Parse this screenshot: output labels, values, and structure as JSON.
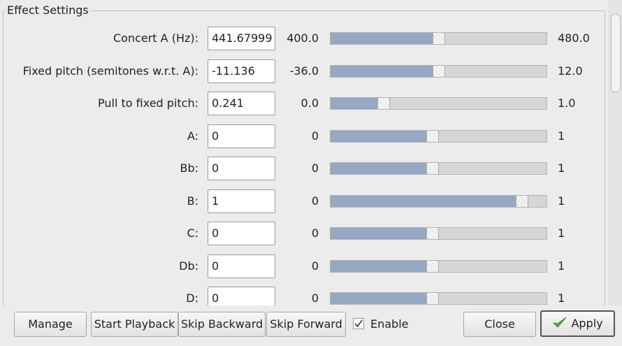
{
  "group": {
    "title": "Effect Settings",
    "rows": [
      {
        "label": "Concert A (Hz):",
        "value": "441.67999",
        "min": "400.0",
        "max": "480.0"
      },
      {
        "label": "Fixed pitch (semitones w.r.t. A):",
        "value": "-11.136",
        "min": "-36.0",
        "max": "12.0"
      },
      {
        "label": "Pull to fixed pitch:",
        "value": "0.241",
        "min": "0.0",
        "max": "1.0"
      },
      {
        "label": "A:",
        "value": "0",
        "min": "0",
        "max": "1"
      },
      {
        "label": "Bb:",
        "value": "0",
        "min": "0",
        "max": "1"
      },
      {
        "label": "B:",
        "value": "1",
        "min": "0",
        "max": "1"
      },
      {
        "label": "C:",
        "value": "0",
        "min": "0",
        "max": "1"
      },
      {
        "label": "Db:",
        "value": "0",
        "min": "0",
        "max": "1"
      },
      {
        "label": "D:",
        "value": "0",
        "min": "0",
        "max": "1"
      }
    ]
  },
  "buttons": {
    "manage": "Manage",
    "start_playback": "Start Playback",
    "skip_backward": "Skip Backward",
    "skip_forward": "Skip Forward",
    "enable": "Enable",
    "close": "Close",
    "apply": "Apply"
  }
}
